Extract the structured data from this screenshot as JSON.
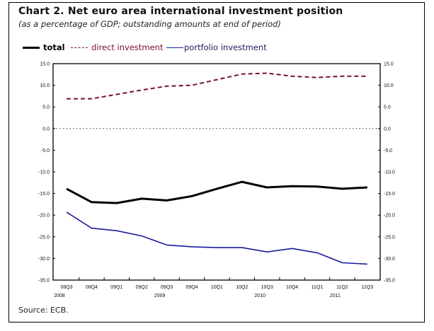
{
  "chart_data": {
    "type": "line",
    "title": "Chart 2. Net euro area international investment position",
    "subtitle": "(as a percentage of GDP; outstanding amounts at end of period)",
    "xlabel": "",
    "ylabel": "",
    "ylim": [
      -35,
      15
    ],
    "yticks": [
      15,
      10,
      5,
      0,
      -5,
      -10,
      -15,
      -20,
      -25,
      -30,
      -35
    ],
    "ytick_labels": [
      "15.0",
      "10.0",
      "5.0",
      "0.0",
      "-5.0",
      "-10.0",
      "-15.0",
      "-20.0",
      "-25.0",
      "-30.0",
      "-35.0"
    ],
    "categories": [
      "08Q3",
      "08Q4",
      "09Q1",
      "09Q2",
      "09Q3",
      "09Q4",
      "10Q1",
      "10Q2",
      "10Q3",
      "10Q4",
      "11Q1",
      "11Q2",
      "11Q3"
    ],
    "year_labels": [
      {
        "label": "2008",
        "category": "08Q3"
      },
      {
        "label": "2009",
        "category": "09Q3"
      },
      {
        "label": "2010",
        "category": "10Q3"
      },
      {
        "label": "2011",
        "category": "11Q2"
      }
    ],
    "reference_line": {
      "y": 0,
      "style": "dotted"
    },
    "grid": false,
    "dual_y_axis": true,
    "legend_position": "top-left",
    "series": [
      {
        "name": "total",
        "style": "solid-thick",
        "color": "#000000",
        "values": [
          -13.9,
          -17.0,
          -17.2,
          -16.2,
          -16.6,
          -15.6,
          -13.9,
          -12.3,
          -13.6,
          -13.3,
          -13.4,
          -13.9,
          -13.6
        ]
      },
      {
        "name": "direct investment",
        "style": "dashed",
        "color": "#7a1030",
        "values": [
          6.9,
          6.9,
          7.9,
          8.9,
          9.8,
          10.0,
          11.3,
          12.6,
          12.8,
          12.1,
          11.8,
          12.1,
          12.1
        ]
      },
      {
        "name": "portfolio investment",
        "style": "solid",
        "color": "#1a1a99",
        "values": [
          -19.3,
          -23.0,
          -23.6,
          -24.8,
          -26.9,
          -27.3,
          -27.5,
          -27.5,
          -28.5,
          -27.7,
          -28.7,
          -31.0,
          -31.3
        ]
      }
    ],
    "source": "Source: ECB."
  },
  "legend": {
    "total": "total",
    "direct": "direct investment",
    "portfolio": "portfolio investment"
  }
}
